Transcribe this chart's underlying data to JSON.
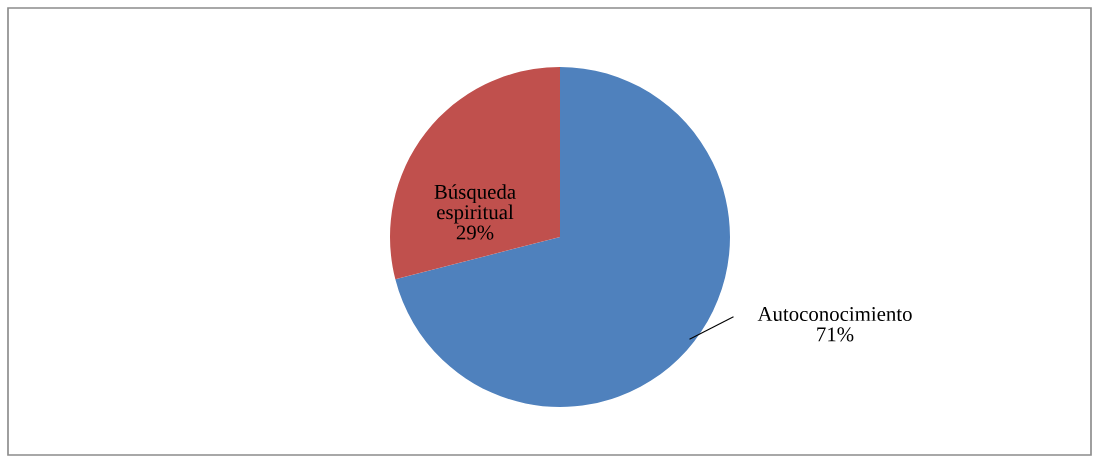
{
  "chart_data": {
    "type": "pie",
    "categories": [
      "Autoconocimiento",
      "Búsqueda\nespiritual"
    ],
    "values": [
      71,
      29
    ],
    "value_labels": [
      "71%",
      "29%"
    ],
    "colors": [
      "#4f81bd",
      "#c0504d"
    ],
    "legend": false
  }
}
